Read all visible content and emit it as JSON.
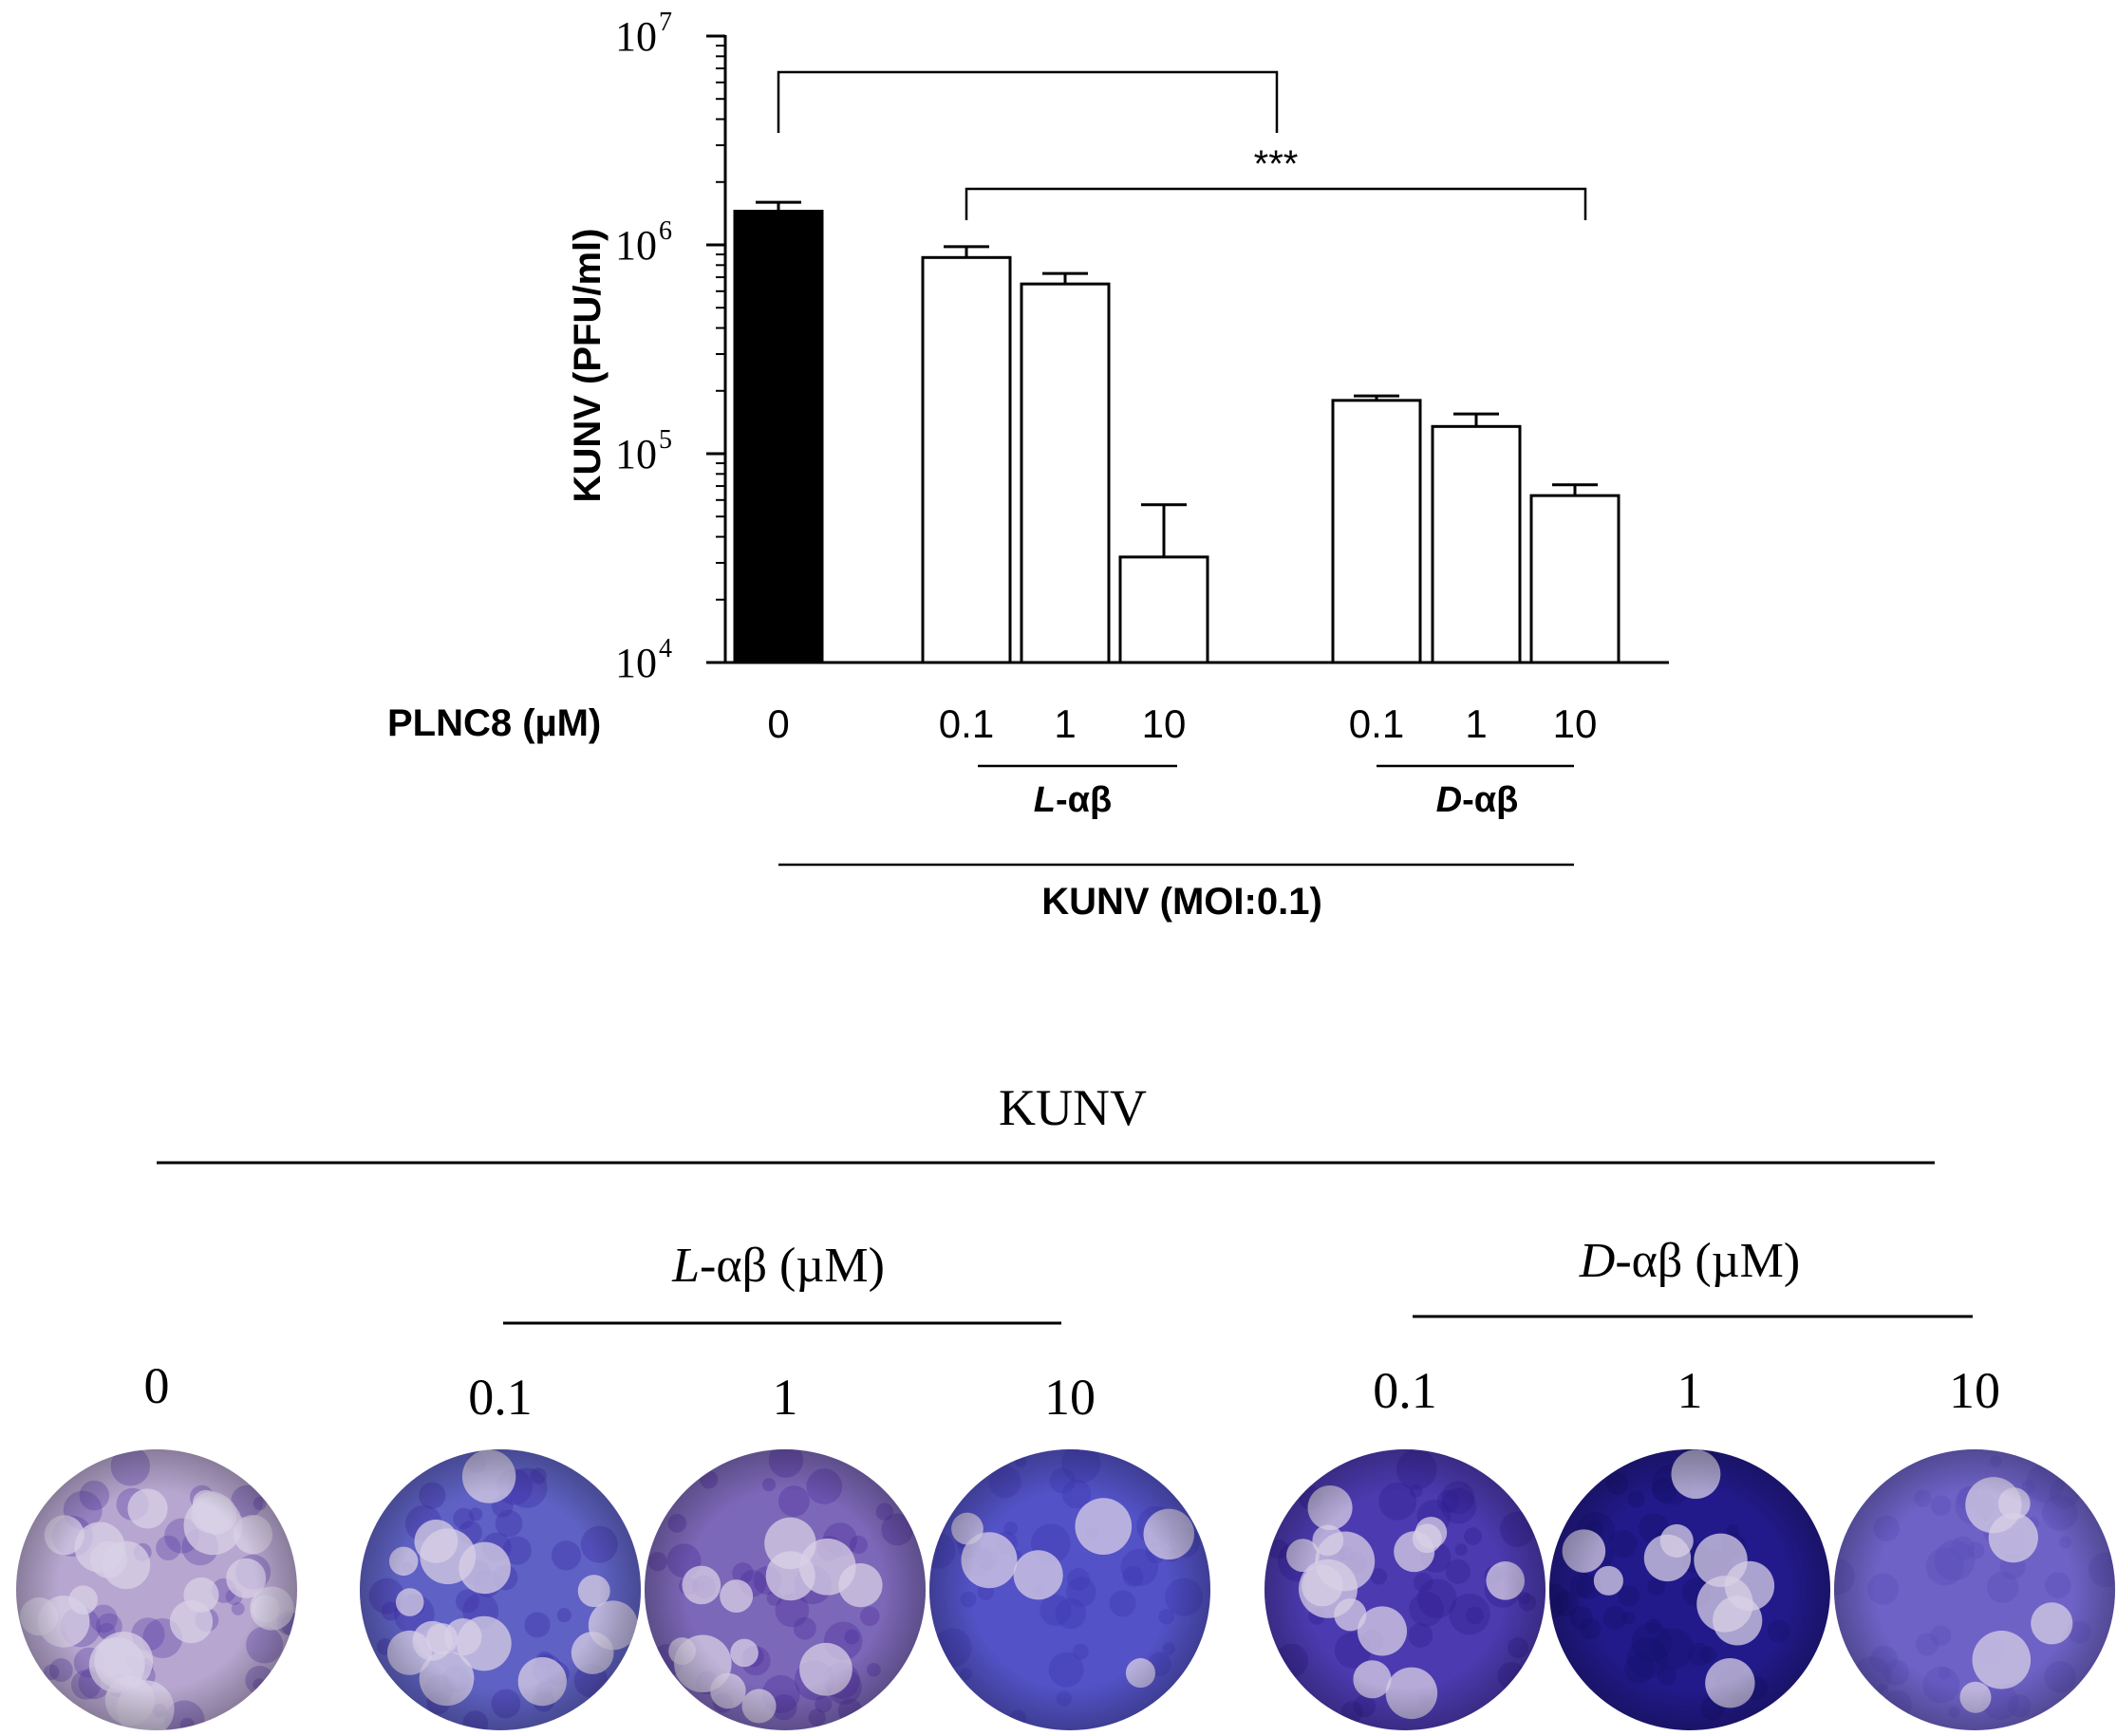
{
  "chart_data": {
    "type": "bar",
    "yscale": "log",
    "ylabel": "KUNV (PFU/ml)",
    "ylim": [
      10000,
      10000000
    ],
    "yticks": [
      {
        "base": "10",
        "exp": "4"
      },
      {
        "base": "10",
        "exp": "5"
      },
      {
        "base": "10",
        "exp": "6"
      },
      {
        "base": "10",
        "exp": "7"
      }
    ],
    "x_row_label": "PLNC8 (µM)",
    "bars": [
      {
        "label": "0",
        "group": "control",
        "value": 1450000,
        "error": 150000,
        "fill": "#000000"
      },
      {
        "label": "0.1",
        "group": "L-αβ",
        "value": 870000,
        "error": 110000,
        "fill": "#ffffff"
      },
      {
        "label": "1",
        "group": "L-αβ",
        "value": 650000,
        "error": 80000,
        "fill": "#ffffff"
      },
      {
        "label": "10",
        "group": "L-αβ",
        "value": 32000,
        "error": 25000,
        "fill": "#ffffff"
      },
      {
        "label": "0.1",
        "group": "D-αβ",
        "value": 180000,
        "error": 9000,
        "fill": "#ffffff"
      },
      {
        "label": "1",
        "group": "D-αβ",
        "value": 135000,
        "error": 20000,
        "fill": "#ffffff"
      },
      {
        "label": "10",
        "group": "D-αβ",
        "value": 63000,
        "error": 8000,
        "fill": "#ffffff"
      }
    ],
    "group_labels": {
      "l": {
        "prefix": "L",
        "suffix": "-αβ"
      },
      "d": {
        "prefix": "D",
        "suffix": "-αβ"
      }
    },
    "infection_label": "KUNV (MOI:0.1)",
    "significance": "***"
  },
  "plaques": {
    "title": "KUNV",
    "l_group": {
      "prefix": "L",
      "suffix": "-αβ (µM)"
    },
    "d_group": {
      "prefix": "D",
      "suffix": "-αβ (µM)"
    },
    "wells": [
      {
        "label": "0",
        "base": "#b7a6cf",
        "dark": "#5a3ca6"
      },
      {
        "label": "0.1",
        "base": "#5f62c4",
        "dark": "#3b2aa6"
      },
      {
        "label": "1",
        "base": "#7c68b8",
        "dark": "#4a2c9c"
      },
      {
        "label": "10",
        "base": "#5352c6",
        "dark": "#3b36b0"
      },
      {
        "label": "0.1",
        "base": "#4c3ab0",
        "dark": "#2e1e8e"
      },
      {
        "label": "1",
        "base": "#221a8a",
        "dark": "#15106a"
      },
      {
        "label": "10",
        "base": "#6e62c6",
        "dark": "#5a4eb8"
      }
    ]
  }
}
